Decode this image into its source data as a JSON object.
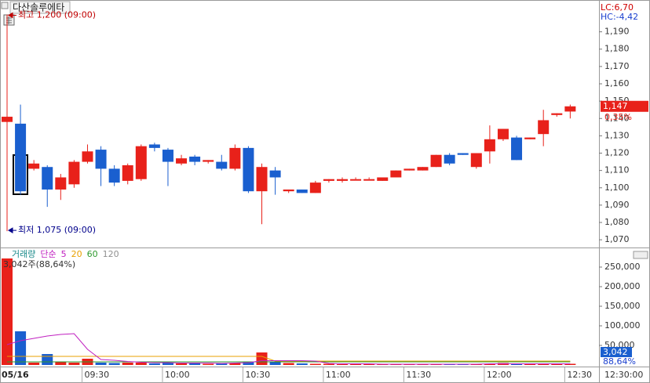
{
  "chart_data": [
    {
      "type": "candlestick",
      "title": "다산솔루에타",
      "open": [
        1138,
        1137,
        1111,
        1112,
        1099,
        1102,
        1115,
        1122,
        1111,
        1104,
        1105,
        1125,
        1122,
        1114,
        1118,
        1115,
        1115,
        1111,
        1123,
        1098,
        1110,
        1098,
        1099,
        1097,
        1104,
        1104,
        1105,
        1105,
        1104,
        1106,
        1110,
        1110,
        1112,
        1119,
        1120,
        1112,
        1121,
        1128,
        1129,
        1128,
        1131,
        1142,
        1144
      ],
      "high": [
        1200,
        1148,
        1116,
        1113,
        1108,
        1116,
        1125,
        1124,
        1113,
        1114,
        1125,
        1126,
        1123,
        1119,
        1119,
        1116,
        1119,
        1125,
        1124,
        1114,
        1112,
        1099,
        1099,
        1104,
        1105,
        1106,
        1106,
        1106,
        1106,
        1110,
        1111,
        1112,
        1119,
        1120,
        1120,
        1120,
        1136,
        1134,
        1130,
        1129,
        1145,
        1143,
        1148
      ],
      "low": [
        1075,
        1096,
        1110,
        1089,
        1093,
        1100,
        1114,
        1101,
        1101,
        1102,
        1104,
        1121,
        1101,
        1113,
        1113,
        1114,
        1110,
        1110,
        1097,
        1079,
        1096,
        1097,
        1097,
        1097,
        1103,
        1103,
        1105,
        1105,
        1104,
        1106,
        1110,
        1110,
        1112,
        1113,
        1119,
        1111,
        1114,
        1127,
        1116,
        1128,
        1124,
        1141,
        1140
      ],
      "close": [
        1141,
        1098,
        1114,
        1099,
        1106,
        1115,
        1121,
        1111,
        1103,
        1113,
        1124,
        1123,
        1115,
        1117,
        1115,
        1116,
        1111,
        1123,
        1098,
        1112,
        1106,
        1099,
        1097,
        1103,
        1105,
        1105,
        1105,
        1105,
        1106,
        1110,
        1111,
        1112,
        1119,
        1114,
        1119,
        1120,
        1128,
        1134,
        1116,
        1129,
        1139,
        1143,
        1147
      ],
      "up_color": "#e8211a",
      "down_color": "#1a5fcf",
      "ylim": [
        1066,
        1207
      ],
      "yticks": [
        {
          "value": 1070,
          "label": "1,070"
        },
        {
          "value": 1080,
          "label": "1,080"
        },
        {
          "value": 1090,
          "label": "1,090"
        },
        {
          "value": 1100,
          "label": "1,100"
        },
        {
          "value": 1110,
          "label": "1,110"
        },
        {
          "value": 1120,
          "label": "1,120"
        },
        {
          "value": 1130,
          "label": "1,130"
        },
        {
          "value": 1140,
          "label": "1,140"
        },
        {
          "value": 1150,
          "label": "1,150"
        },
        {
          "value": 1160,
          "label": "1,160"
        },
        {
          "value": 1170,
          "label": "1,170"
        },
        {
          "value": 1180,
          "label": "1,180"
        },
        {
          "value": 1190,
          "label": "1,190"
        }
      ],
      "annotations": [
        {
          "text": "최고 1,200 (09:00)",
          "color": "#c00000"
        },
        {
          "text": "최저 1,075 (09:00)",
          "color": "#00008b"
        }
      ],
      "stats": [
        {
          "text": "LC:6,70",
          "color": "#d00000"
        },
        {
          "text": "HC:-4,42",
          "color": "#1a3fcf"
        }
      ],
      "last_price": {
        "value": 1147,
        "label": "1,147"
      },
      "change_label": "0,35%"
    },
    {
      "type": "bar",
      "categories": [
        "05/16",
        null,
        null,
        null,
        null,
        null,
        "09:30",
        null,
        null,
        null,
        null,
        null,
        "10:00",
        null,
        null,
        null,
        null,
        null,
        "10:30",
        null,
        null,
        null,
        null,
        null,
        "11:00",
        null,
        null,
        null,
        null,
        null,
        "11:30",
        null,
        null,
        null,
        null,
        null,
        "12:00",
        null,
        null,
        null,
        null,
        null,
        "12:30"
      ],
      "series": [
        {
          "name": "거래량",
          "color": "#1a8a8a",
          "values": [
            272000,
            86000,
            6000,
            28000,
            8000,
            6000,
            16000,
            6000,
            5000,
            6000,
            6000,
            4000,
            5000,
            4000,
            4000,
            3000,
            5000,
            5000,
            8000,
            32000,
            8000,
            5000,
            4000,
            3000,
            3000,
            2000,
            2000,
            2000,
            2000,
            2000,
            2000,
            2000,
            3000,
            2000,
            2000,
            2000,
            3000,
            5000,
            4000,
            2000,
            4000,
            3000,
            3042
          ]
        }
      ],
      "ma_label": "단순",
      "ma": [
        {
          "name": "120",
          "color": "#909090",
          "values": [
            8000,
            8000,
            8000,
            8000,
            8000,
            8000,
            8000,
            8000,
            8000,
            8000,
            8000,
            8000,
            8000,
            8000,
            8000,
            8000,
            8000,
            8000,
            8000,
            8000,
            8000,
            8000,
            8000,
            8000,
            8000,
            8000,
            8000,
            8000,
            8000,
            8000,
            8000,
            8000,
            8000,
            8000,
            8000,
            8000,
            8000,
            8000,
            8000,
            8000,
            8000,
            8000,
            8000
          ]
        },
        {
          "name": "60",
          "color": "#2e9a2e",
          "values": [
            8000,
            8000,
            8000,
            8000,
            8000,
            8000,
            8000,
            8000,
            8000,
            8000,
            8000,
            8000,
            8000,
            8000,
            8000,
            8000,
            8000,
            8000,
            8000,
            8000,
            8000,
            8000,
            8000,
            8000,
            8000,
            8000,
            8000,
            8000,
            8000,
            8000,
            8000,
            8000,
            8000,
            8000,
            8000,
            8000,
            8000,
            8000,
            8000,
            8000,
            8000,
            8000,
            8000
          ]
        },
        {
          "name": "20",
          "color": "#e8a000",
          "values": [
            22000,
            22000,
            22000,
            22000,
            22000,
            22000,
            22000,
            22000,
            22000,
            22000,
            22000,
            22000,
            22000,
            22000,
            22000,
            22000,
            22000,
            22000,
            22000,
            22000,
            10000,
            10000,
            10000,
            10000,
            10000,
            10000,
            10000,
            10000,
            10000,
            10000,
            10000,
            10000,
            10000,
            10000,
            10000,
            10000,
            10000,
            10000,
            10000,
            10000,
            10000,
            10000,
            10000
          ]
        },
        {
          "name": "5",
          "color": "#c020c0",
          "values": [
            52000,
            62000,
            68000,
            74000,
            78000,
            80000,
            40000,
            14000,
            12000,
            9000,
            7000,
            6000,
            6000,
            5000,
            5000,
            5000,
            4000,
            5000,
            6000,
            11000,
            11000,
            11000,
            11000,
            10000,
            4000,
            3000,
            3000,
            3000,
            2000,
            2000,
            2000,
            2000,
            2000,
            2000,
            2000,
            2000,
            3000,
            3000,
            3000,
            3000,
            3000,
            3000,
            3000
          ]
        }
      ],
      "summary": "3,042주(88,64%)",
      "last_volume": {
        "value": 3042,
        "label": "3,042"
      },
      "ratio_label": "88,64%",
      "ylim": [
        0,
        296000
      ],
      "yticks": [
        {
          "value": 50000,
          "label": "50,000"
        },
        {
          "value": 100000,
          "label": "100,000"
        },
        {
          "value": 150000,
          "label": "150,000"
        },
        {
          "value": 200000,
          "label": "200,000"
        },
        {
          "value": 250000,
          "label": "250,000"
        }
      ],
      "corner_label": "12:30:00"
    }
  ]
}
